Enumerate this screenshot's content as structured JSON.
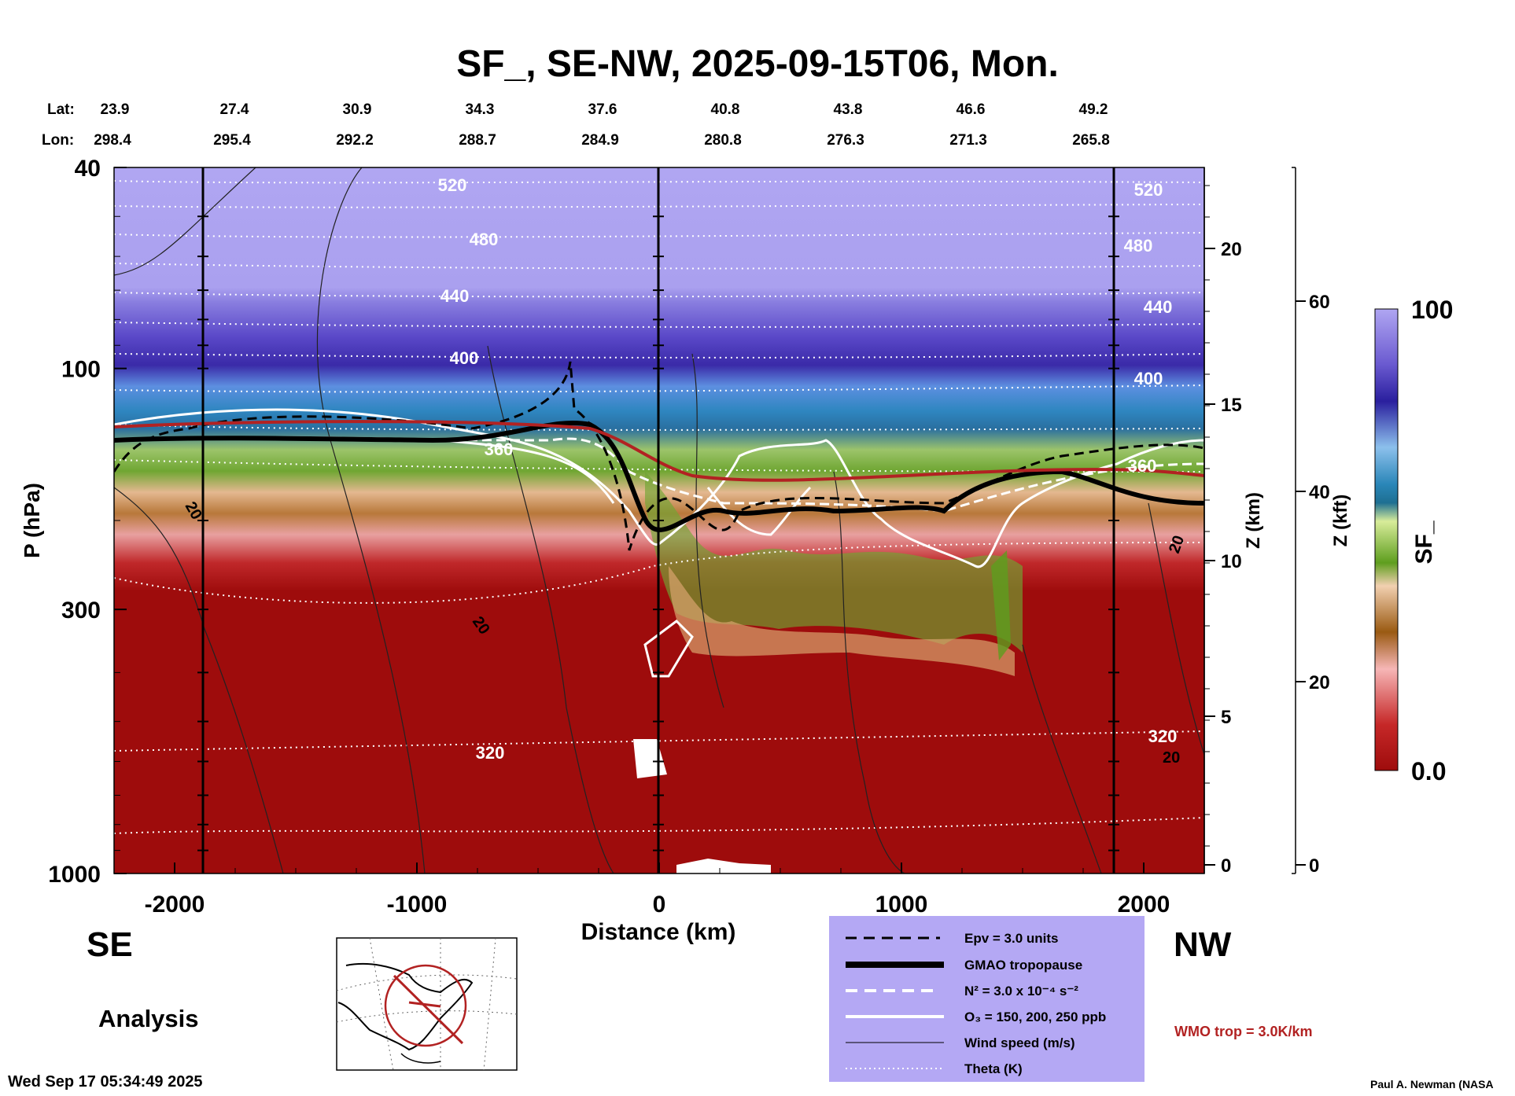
{
  "chart_data": {
    "type": "heatmap",
    "title": "SF_, SE-NW, 2025-09-15T06, Mon.",
    "xlabel": "Distance (km)",
    "ylabel": "P (hPa)",
    "x_ticks": [
      "-2000",
      "-1000",
      "0",
      "1000",
      "2000"
    ],
    "x_tick_values": [
      -2000,
      -1000,
      0,
      1000,
      2000
    ],
    "xlim": [
      -2250,
      2250
    ],
    "y_scale": "log",
    "y_ticks": [
      "40",
      "100",
      "300",
      "1000"
    ],
    "y_tick_values": [
      40,
      100,
      300,
      1000
    ],
    "ylim": [
      1000,
      40
    ],
    "z_km_label": "Z (km)",
    "z_km_ticks": [
      "20",
      "15",
      "10",
      "5",
      "0"
    ],
    "z_kft_label": "Z (kft)",
    "z_kft_ticks": [
      "60",
      "40",
      "20",
      "0"
    ],
    "lat_label": "Lat:",
    "lon_label": "Lon:",
    "lat_values": [
      "23.9",
      "27.4",
      "30.9",
      "34.3",
      "37.6",
      "40.8",
      "43.8",
      "46.6",
      "49.2"
    ],
    "lon_values": [
      "298.4",
      "295.4",
      "292.2",
      "288.7",
      "284.9",
      "280.8",
      "276.3",
      "271.3",
      "265.8"
    ],
    "direction_left": "SE",
    "direction_right": "NW",
    "mode_label": "Analysis",
    "colorbar": {
      "label": "SF_",
      "max_label": "100",
      "min_label": "0.0",
      "min": 0.0,
      "max": 100
    },
    "theta_labels": [
      "520",
      "480",
      "440",
      "400",
      "360",
      "320",
      "520",
      "480",
      "440",
      "400",
      "360",
      "320"
    ],
    "theta_levels_K": [
      520,
      480,
      440,
      400,
      360,
      320
    ],
    "wind_labels": [
      "20",
      "20",
      "20",
      "20"
    ],
    "legend": [
      {
        "label": "Epv = 3.0 units",
        "style": "dashed-black"
      },
      {
        "label": "GMAO tropopause",
        "style": "thick-black"
      },
      {
        "label": "N² = 3.0 x 10⁻⁴ s⁻²",
        "style": "dashed-white"
      },
      {
        "label": "O₃ = 150, 200, 250 ppb",
        "style": "solid-white"
      },
      {
        "label": "Wind speed (m/s)",
        "style": "thin-black"
      },
      {
        "label": "Theta (K)",
        "style": "dotted-white"
      }
    ],
    "wmo_label": "WMO trop = 3.0K/km",
    "colors": {
      "wmo": "#b22222",
      "legend_bg": "#b4a8f4",
      "low": "#9e0c0c",
      "high": "#b0a6f2"
    }
  },
  "timestamp": "Wed Sep 17 05:34:49 2025",
  "credit": "Paul A. Newman (NASA"
}
